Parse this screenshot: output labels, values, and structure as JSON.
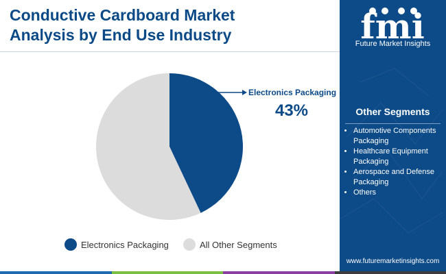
{
  "title": {
    "line1": "Conductive Cardboard Market",
    "line2": "Analysis by End Use Industry"
  },
  "brand": {
    "logo_text": "fmi",
    "name": "Future Market Insights",
    "url": "www.futuremarketinsights.com"
  },
  "sidebar": {
    "heading": "Other Segments",
    "items": [
      "Automotive Components Packaging",
      "Healthcare Equipment Packaging",
      "Aerospace and Defense Packaging",
      "Others"
    ]
  },
  "colors": {
    "primary": "#0c4a88",
    "secondary": "#dcdcdc",
    "bar": [
      "#1f6bb0",
      "#7ac143",
      "#8b3fa0",
      "#3c3c3c"
    ]
  },
  "chart_data": {
    "type": "pie",
    "slices": [
      {
        "label": "Electronics Packaging",
        "value": 43,
        "color": "#0c4a88"
      },
      {
        "label": "All Other Segments",
        "value": 57,
        "color": "#dcdcdc"
      }
    ],
    "annotation": {
      "label": "Electronics Packaging",
      "value_text": "43%"
    },
    "legend": "bottom"
  }
}
